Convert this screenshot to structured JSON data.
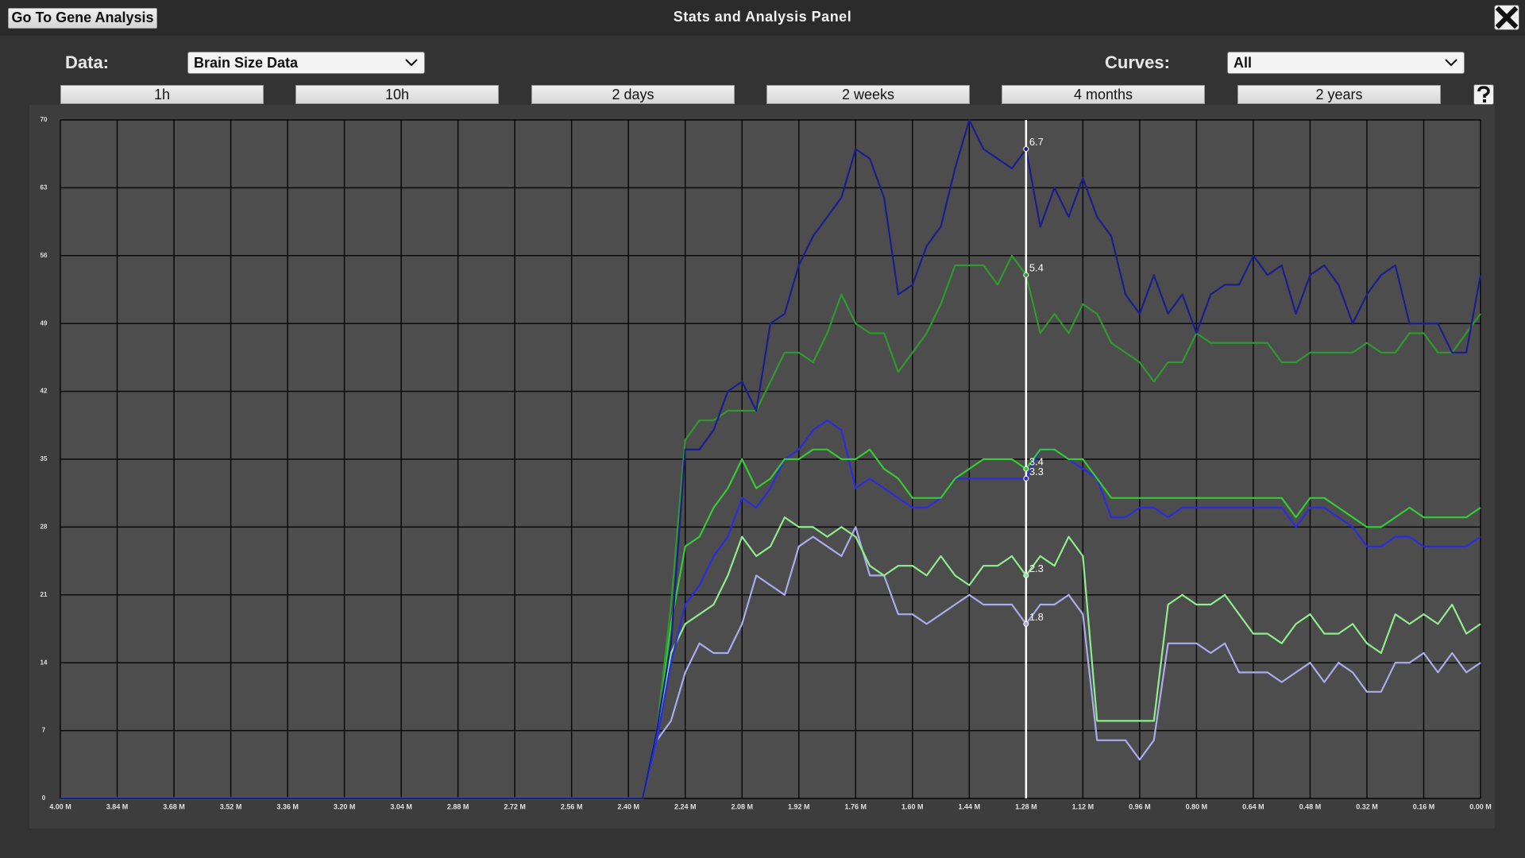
{
  "header": {
    "button": "Go To Gene Analysis",
    "title": "Stats and Analysis Panel"
  },
  "controls": {
    "data_label": "Data:",
    "data_value": "Brain Size Data",
    "curves_label": "Curves:",
    "curves_value": "All"
  },
  "time_buttons": [
    "1h",
    "10h",
    "2 days",
    "2 weeks",
    "4 months",
    "2 years"
  ],
  "chart_data": {
    "type": "line",
    "grid": true,
    "x": [
      4,
      2.4,
      2.36,
      2.32,
      2.28,
      2.24,
      2.2,
      2.16,
      2.12,
      2.08,
      2.04,
      2,
      1.96,
      1.92,
      1.88,
      1.84,
      1.8,
      1.76,
      1.72,
      1.68,
      1.64,
      1.6,
      1.56,
      1.52,
      1.48,
      1.44,
      1.4,
      1.36,
      1.32,
      1.28,
      1.24,
      1.2,
      1.16,
      1.12,
      1.08,
      1.04,
      1,
      0.96,
      0.92,
      0.88,
      0.84,
      0.8,
      0.76,
      0.72,
      0.68,
      0.64,
      0.6,
      0.56,
      0.52,
      0.48,
      0.44,
      0.4,
      0.36,
      0.32,
      0.28,
      0.24,
      0.2,
      0.16,
      0.12,
      0.08,
      0.04,
      0
    ],
    "xlim": [
      4,
      0
    ],
    "xticks": [
      {
        "value": 4,
        "label": "4.00 M"
      },
      {
        "value": 3.84,
        "label": "3.84 M"
      },
      {
        "value": 3.68,
        "label": "3.68 M"
      },
      {
        "value": 3.52,
        "label": "3.52 M"
      },
      {
        "value": 3.36,
        "label": "3.36 M"
      },
      {
        "value": 3.2,
        "label": "3.20 M"
      },
      {
        "value": 3.04,
        "label": "3.04 M"
      },
      {
        "value": 2.88,
        "label": "2.88 M"
      },
      {
        "value": 2.72,
        "label": "2.72 M"
      },
      {
        "value": 2.56,
        "label": "2.56 M"
      },
      {
        "value": 2.4,
        "label": "2.40 M"
      },
      {
        "value": 2.24,
        "label": "2.24 M"
      },
      {
        "value": 2.08,
        "label": "2.08 M"
      },
      {
        "value": 1.92,
        "label": "1.92 M"
      },
      {
        "value": 1.76,
        "label": "1.76 M"
      },
      {
        "value": 1.6,
        "label": "1.60 M"
      },
      {
        "value": 1.44,
        "label": "1.44 M"
      },
      {
        "value": 1.28,
        "label": "1.28 M"
      },
      {
        "value": 1.12,
        "label": "1.12 M"
      },
      {
        "value": 0.96,
        "label": "0.96 M"
      },
      {
        "value": 0.8,
        "label": "0.80 M"
      },
      {
        "value": 0.64,
        "label": "0.64 M"
      },
      {
        "value": 0.48,
        "label": "0.48 M"
      },
      {
        "value": 0.32,
        "label": "0.32 M"
      },
      {
        "value": 0.16,
        "label": "0.16 M"
      },
      {
        "value": 0,
        "label": "0.00 M"
      }
    ],
    "ylim": [
      0,
      70
    ],
    "yticks": [
      0,
      7,
      14,
      21,
      28,
      35,
      42,
      49,
      56,
      63,
      70
    ],
    "series": [
      {
        "color": "#1c1c8e",
        "values": [
          0,
          0,
          0,
          7,
          16,
          36,
          36,
          38,
          42,
          43,
          40,
          49,
          50,
          55,
          58,
          60,
          62,
          67,
          66,
          62,
          52,
          53,
          57,
          59,
          65,
          70,
          67,
          66,
          65,
          67,
          59,
          63,
          60,
          64,
          60,
          58,
          52,
          50,
          54,
          50,
          52,
          48,
          52,
          53,
          53,
          56,
          54,
          55,
          50,
          54,
          55,
          53,
          49,
          52,
          54,
          55,
          49,
          49,
          49,
          46,
          46,
          54
        ]
      },
      {
        "color": "#2e9a2e",
        "values": [
          0,
          0,
          0,
          7,
          20,
          37,
          39,
          39,
          40,
          40,
          40,
          43,
          46,
          46,
          45,
          48,
          52,
          49,
          48,
          48,
          44,
          46,
          48,
          51,
          55,
          55,
          55,
          53,
          56,
          54,
          48,
          50,
          48,
          51,
          50,
          47,
          46,
          45,
          43,
          45,
          45,
          48,
          47,
          47,
          47,
          47,
          47,
          45,
          45,
          46,
          46,
          46,
          46,
          47,
          46,
          46,
          48,
          48,
          46,
          46,
          48,
          50
        ]
      },
      {
        "color": "#33cc33",
        "values": [
          0,
          0,
          0,
          7,
          18,
          26,
          27,
          30,
          32,
          35,
          32,
          33,
          35,
          35,
          36,
          36,
          35,
          35,
          36,
          34,
          33,
          31,
          31,
          31,
          33,
          34,
          35,
          35,
          35,
          34,
          36,
          36,
          35,
          35,
          33,
          31,
          31,
          31,
          31,
          31,
          31,
          31,
          31,
          31,
          31,
          31,
          31,
          31,
          29,
          31,
          31,
          30,
          29,
          28,
          28,
          29,
          30,
          29,
          29,
          29,
          29,
          30
        ]
      },
      {
        "color": "#2b2be0",
        "values": [
          0,
          0,
          0,
          6,
          14,
          20,
          22,
          25,
          27,
          31,
          30,
          32,
          35,
          36,
          38,
          39,
          38,
          32,
          33,
          32,
          31,
          30,
          30,
          31,
          33,
          33,
          33,
          33,
          33,
          33,
          36,
          36,
          35,
          34,
          33,
          29,
          29,
          30,
          30,
          29,
          30,
          30,
          30,
          30,
          30,
          30,
          30,
          30,
          28,
          30,
          30,
          29,
          28,
          26,
          26,
          27,
          27,
          26,
          26,
          26,
          26,
          27
        ]
      },
      {
        "color": "#8eee8e",
        "values": [
          0,
          0,
          0,
          7,
          15,
          18,
          19,
          20,
          23,
          27,
          25,
          26,
          29,
          28,
          28,
          27,
          28,
          27,
          24,
          23,
          24,
          24,
          23,
          25,
          23,
          22,
          24,
          24,
          25,
          23,
          25,
          24,
          27,
          25,
          8,
          8,
          8,
          8,
          8,
          20,
          21,
          20,
          20,
          21,
          19,
          17,
          17,
          16,
          18,
          19,
          17,
          17,
          18,
          16,
          15,
          19,
          18,
          19,
          18,
          20,
          17,
          18
        ]
      },
      {
        "color": "#ababee",
        "values": [
          0,
          0,
          0,
          6,
          8,
          13,
          16,
          15,
          15,
          18,
          23,
          22,
          21,
          26,
          27,
          26,
          25,
          28,
          23,
          23,
          19,
          19,
          18,
          19,
          20,
          21,
          20,
          20,
          20,
          18,
          20,
          20,
          21,
          19,
          6,
          6,
          6,
          4,
          6,
          16,
          16,
          16,
          15,
          16,
          13,
          13,
          13,
          12,
          13,
          14,
          12,
          14,
          13,
          11,
          11,
          14,
          14,
          15,
          13,
          15,
          13,
          14
        ]
      }
    ],
    "cursor": {
      "x": 1.28,
      "labels": [
        "6.7",
        "5.4",
        "3.4",
        "3.3",
        "2.3",
        "1.8"
      ]
    }
  }
}
